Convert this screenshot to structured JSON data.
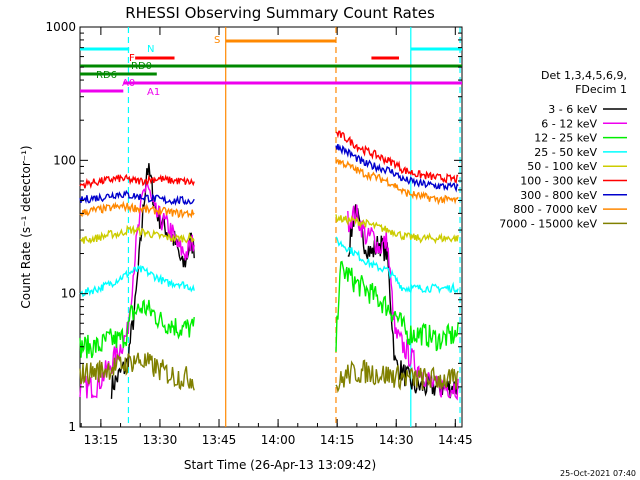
{
  "chart_data": {
    "type": "line",
    "title": "RHESSI Observing Summary Count Rates",
    "xlabel": "Start Time (26-Apr-13 13:09:42)",
    "ylabel": "Count Rate (s⁻¹ detector⁻¹)",
    "y_scale": "log",
    "ylim": [
      1,
      1000
    ],
    "xlim_minutes": [
      0,
      97
    ],
    "x_ticks": [
      {
        "label": "13:15",
        "min": 5.3
      },
      {
        "label": "13:30",
        "min": 20.3
      },
      {
        "label": "13:45",
        "min": 35.3
      },
      {
        "label": "14:00",
        "min": 50.3
      },
      {
        "label": "14:15",
        "min": 65.3
      },
      {
        "label": "14:30",
        "min": 80.3
      },
      {
        "label": "14:45",
        "min": 95.3
      }
    ],
    "y_ticks": [
      {
        "label": "1",
        "value": 1
      },
      {
        "label": "10",
        "value": 10
      },
      {
        "label": "100",
        "value": 100
      },
      {
        "label": "1000",
        "value": 1000
      }
    ],
    "legend_header": [
      "Det 1,3,4,5,6,9,",
      "FDecim 1"
    ],
    "legend_placement": "right",
    "series": [
      {
        "name": "3 - 6 keV",
        "color": "#000000",
        "points": [
          [
            8,
            2
          ],
          [
            12,
            3
          ],
          [
            14,
            8
          ],
          [
            16,
            40
          ],
          [
            17,
            90
          ],
          [
            18,
            70
          ],
          [
            19,
            45
          ],
          [
            20,
            38
          ],
          [
            22,
            30
          ],
          [
            24,
            25
          ],
          [
            25,
            20
          ],
          [
            26,
            16
          ],
          [
            27,
            18
          ],
          [
            28,
            25
          ],
          [
            29,
            22
          ],
          [
            68,
            20
          ],
          [
            70,
            45
          ],
          [
            71,
            30
          ],
          [
            72,
            25
          ],
          [
            74,
            20
          ],
          [
            76,
            24
          ],
          [
            78,
            20
          ],
          [
            80,
            3
          ],
          [
            85,
            2
          ],
          [
            90,
            2
          ],
          [
            96,
            2
          ]
        ]
      },
      {
        "name": "6 - 12 keV",
        "color": "#ee00ee",
        "points": [
          [
            0,
            2
          ],
          [
            4,
            2
          ],
          [
            8,
            3
          ],
          [
            12,
            5
          ],
          [
            14,
            20
          ],
          [
            16,
            55
          ],
          [
            17,
            70
          ],
          [
            18,
            50
          ],
          [
            19,
            40
          ],
          [
            21,
            35
          ],
          [
            23,
            30
          ],
          [
            25,
            22
          ],
          [
            27,
            20
          ],
          [
            29,
            25
          ],
          [
            68,
            35
          ],
          [
            70,
            40
          ],
          [
            72,
            30
          ],
          [
            73,
            25
          ],
          [
            74,
            28
          ],
          [
            76,
            22
          ],
          [
            78,
            25
          ],
          [
            80,
            5
          ],
          [
            85,
            3
          ],
          [
            90,
            2
          ],
          [
            96,
            2
          ]
        ]
      },
      {
        "name": "12 - 25 keV",
        "color": "#00ee00",
        "points": [
          [
            0,
            4
          ],
          [
            5,
            4
          ],
          [
            7,
            4.5
          ],
          [
            10,
            4.5
          ],
          [
            12,
            5
          ],
          [
            13,
            7
          ],
          [
            16,
            8
          ],
          [
            19,
            7
          ],
          [
            21,
            6
          ],
          [
            23,
            6
          ],
          [
            25,
            5.5
          ],
          [
            29,
            5.5
          ],
          [
            65,
            4
          ],
          [
            66,
            15
          ],
          [
            68,
            14
          ],
          [
            70,
            12
          ],
          [
            72,
            11
          ],
          [
            74,
            10
          ],
          [
            76,
            9
          ],
          [
            78,
            8
          ],
          [
            80,
            7
          ],
          [
            83,
            5
          ],
          [
            87,
            5
          ],
          [
            91,
            4.5
          ],
          [
            96,
            5
          ]
        ]
      },
      {
        "name": "25 - 50 keV",
        "color": "#00ffff",
        "points": [
          [
            0,
            10
          ],
          [
            5,
            11
          ],
          [
            8,
            12
          ],
          [
            10,
            13
          ],
          [
            12,
            14
          ],
          [
            14,
            15
          ],
          [
            16,
            15
          ],
          [
            18,
            14
          ],
          [
            20,
            13
          ],
          [
            22,
            12
          ],
          [
            25,
            12
          ],
          [
            29,
            11
          ],
          [
            65,
            25
          ],
          [
            67,
            23
          ],
          [
            70,
            20
          ],
          [
            72,
            18
          ],
          [
            75,
            16
          ],
          [
            78,
            15
          ],
          [
            80,
            13
          ],
          [
            82,
            11
          ],
          [
            86,
            11
          ],
          [
            91,
            11
          ],
          [
            96,
            11
          ]
        ]
      },
      {
        "name": "50 - 100 keV",
        "color": "#cccc00",
        "points": [
          [
            0,
            25
          ],
          [
            4,
            26
          ],
          [
            8,
            28
          ],
          [
            10,
            28
          ],
          [
            12,
            30
          ],
          [
            13,
            30
          ],
          [
            14,
            30
          ],
          [
            16,
            29
          ],
          [
            18,
            28
          ],
          [
            20,
            27
          ],
          [
            24,
            26
          ],
          [
            29,
            26
          ],
          [
            65,
            37
          ],
          [
            67,
            36
          ],
          [
            70,
            35
          ],
          [
            72,
            34
          ],
          [
            75,
            32
          ],
          [
            78,
            30
          ],
          [
            80,
            29
          ],
          [
            82,
            27
          ],
          [
            86,
            26
          ],
          [
            91,
            26
          ],
          [
            96,
            26
          ]
        ]
      },
      {
        "name": "100 - 300 keV",
        "color": "#ff0000",
        "points": [
          [
            0,
            65
          ],
          [
            3,
            68
          ],
          [
            6,
            70
          ],
          [
            8,
            72
          ],
          [
            10,
            73
          ],
          [
            12,
            72
          ],
          [
            14,
            70
          ],
          [
            16,
            70
          ],
          [
            18,
            72
          ],
          [
            20,
            73
          ],
          [
            22,
            71
          ],
          [
            25,
            70
          ],
          [
            29,
            68
          ],
          [
            65,
            160
          ],
          [
            67,
            150
          ],
          [
            70,
            130
          ],
          [
            72,
            120
          ],
          [
            75,
            110
          ],
          [
            78,
            100
          ],
          [
            80,
            95
          ],
          [
            82,
            85
          ],
          [
            86,
            78
          ],
          [
            91,
            74
          ],
          [
            96,
            72
          ]
        ]
      },
      {
        "name": "300 - 800 keV",
        "color": "#0000cc",
        "points": [
          [
            0,
            50
          ],
          [
            3,
            52
          ],
          [
            6,
            53
          ],
          [
            8,
            55
          ],
          [
            10,
            56
          ],
          [
            12,
            55
          ],
          [
            14,
            54
          ],
          [
            16,
            53
          ],
          [
            18,
            52
          ],
          [
            20,
            51
          ],
          [
            22,
            50
          ],
          [
            25,
            50
          ],
          [
            29,
            49
          ],
          [
            65,
            130
          ],
          [
            67,
            120
          ],
          [
            70,
            105
          ],
          [
            72,
            95
          ],
          [
            75,
            90
          ],
          [
            78,
            85
          ],
          [
            80,
            80
          ],
          [
            82,
            72
          ],
          [
            86,
            67
          ],
          [
            91,
            64
          ],
          [
            96,
            63
          ]
        ]
      },
      {
        "name": "800 - 7000 keV",
        "color": "#ff8800",
        "points": [
          [
            0,
            40
          ],
          [
            3,
            42
          ],
          [
            6,
            43
          ],
          [
            8,
            44
          ],
          [
            10,
            45
          ],
          [
            12,
            45
          ],
          [
            14,
            44
          ],
          [
            16,
            43
          ],
          [
            18,
            42
          ],
          [
            20,
            42
          ],
          [
            22,
            41
          ],
          [
            25,
            40
          ],
          [
            29,
            40
          ],
          [
            65,
            100
          ],
          [
            67,
            95
          ],
          [
            70,
            85
          ],
          [
            72,
            80
          ],
          [
            75,
            75
          ],
          [
            78,
            70
          ],
          [
            80,
            65
          ],
          [
            82,
            58
          ],
          [
            86,
            54
          ],
          [
            91,
            51
          ],
          [
            96,
            50
          ]
        ]
      },
      {
        "name": "7000 - 15000 keV",
        "color": "#808000",
        "points": [
          [
            0,
            2.5
          ],
          [
            4,
            2.6
          ],
          [
            8,
            2.8
          ],
          [
            12,
            3
          ],
          [
            14,
            3.2
          ],
          [
            16,
            3.1
          ],
          [
            18,
            2.9
          ],
          [
            20,
            2.7
          ],
          [
            24,
            2.4
          ],
          [
            29,
            2.3
          ],
          [
            65,
            2
          ],
          [
            68,
            2.5
          ],
          [
            72,
            2.6
          ],
          [
            76,
            2.5
          ],
          [
            80,
            2.4
          ],
          [
            85,
            2.3
          ],
          [
            90,
            2.3
          ],
          [
            96,
            2.2
          ]
        ]
      }
    ],
    "annotations": {
      "labels": [
        {
          "text": "N",
          "color": "#00ffff"
        },
        {
          "text": "F",
          "color": "#ff0000"
        },
        {
          "text": "RD0",
          "color": "#008800"
        },
        {
          "text": "RD6",
          "color": "#008800"
        },
        {
          "text": "A0",
          "color": "#ee00ee"
        },
        {
          "text": "A1",
          "color": "#ee00ee"
        },
        {
          "text": "S",
          "color": "#ff8800"
        }
      ],
      "intervals": [
        {
          "label": "N",
          "color": "#00ffff",
          "ranges": [
            [
              0,
              12.5
            ],
            [
              84,
              97
            ]
          ]
        },
        {
          "label": "F",
          "color": "#ff0000",
          "ranges": [
            [
              14,
              24
            ],
            [
              74,
              81
            ]
          ]
        },
        {
          "label": "RD0",
          "color": "#008800",
          "ranges": [
            [
              0,
              97
            ]
          ]
        },
        {
          "label": "RD6",
          "color": "#008800",
          "ranges": [
            [
              0,
              19.5
            ]
          ]
        },
        {
          "label": "A0",
          "color": "#ee00ee",
          "ranges": [
            [
              0,
              11
            ]
          ]
        },
        {
          "label": "A1",
          "color": "#ee00ee",
          "ranges": [
            [
              11,
              97
            ]
          ]
        },
        {
          "label": "S",
          "color": "#ff8800",
          "ranges": [
            [
              37,
              65
            ]
          ]
        }
      ],
      "vlines": [
        {
          "min": 12.3,
          "color": "#00ffff",
          "dash": true
        },
        {
          "min": 37.0,
          "color": "#ff8800",
          "dash": false
        },
        {
          "min": 65.0,
          "color": "#ff8800",
          "dash": true
        },
        {
          "min": 84.0,
          "color": "#00ffff",
          "dash": false
        },
        {
          "min": 96.5,
          "color": "#00ffff",
          "dash": true
        }
      ]
    },
    "footer_date": "25-Oct-2021 07:40"
  }
}
